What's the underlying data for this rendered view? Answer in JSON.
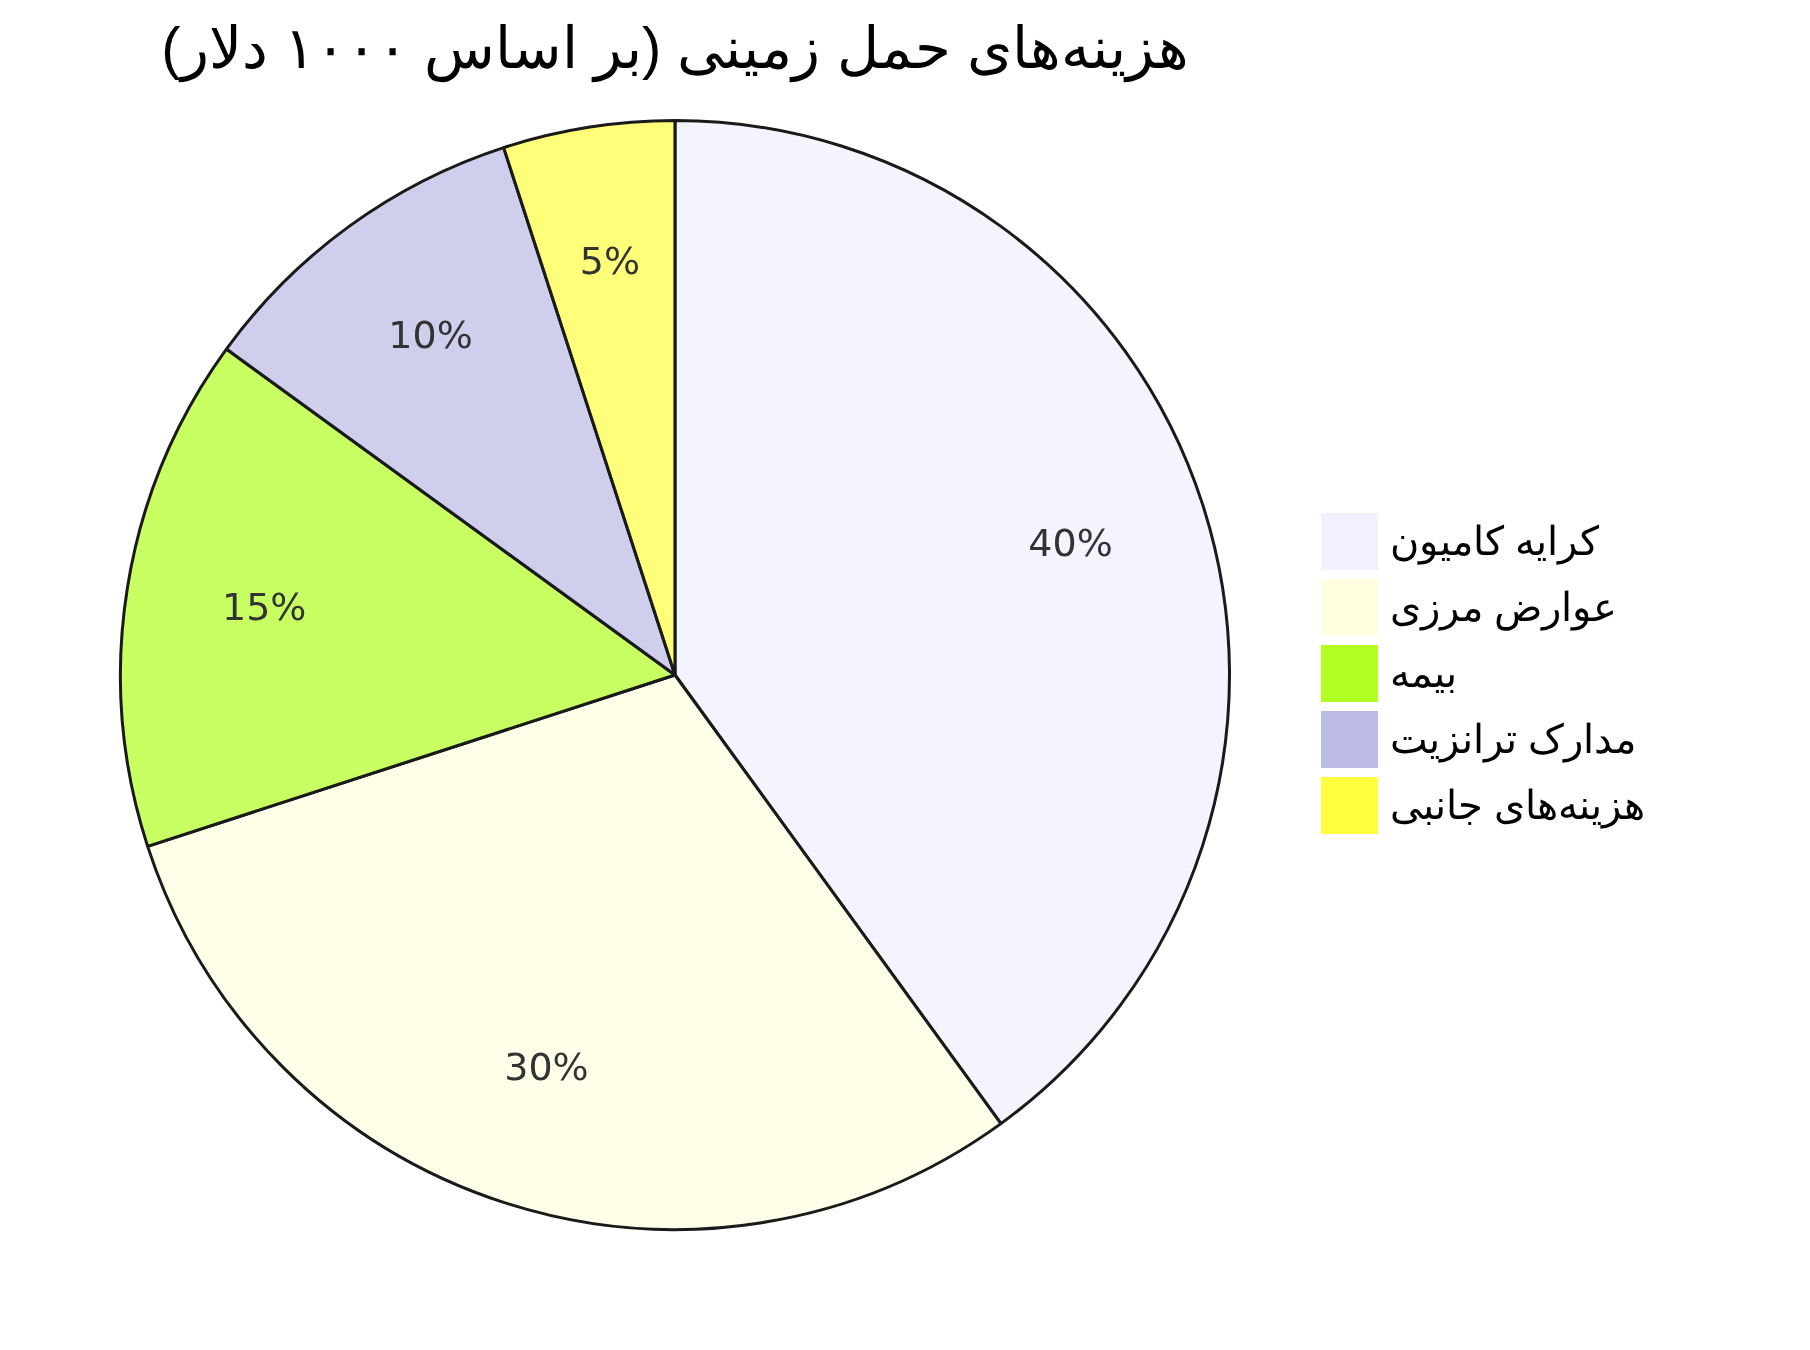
{
  "chart_data": {
    "type": "pie",
    "title": "هزینه‌های حمل زمینی (بر اساس ۱۰۰۰ دلار)",
    "categories": [
      "کرایه کامیون",
      "عوارض مرزی",
      "بیمه",
      "مدارک ترانزیت",
      "هزینه‌های جانبی"
    ],
    "values": [
      40,
      30,
      15,
      10,
      5
    ],
    "colors": [
      "#f0f0ff",
      "#ffffe0",
      "#b0ff20",
      "#bbbbe6",
      "#ffff40"
    ],
    "value_labels": [
      "40%",
      "30%",
      "15%",
      "10%",
      "5%"
    ],
    "legend": "right"
  }
}
